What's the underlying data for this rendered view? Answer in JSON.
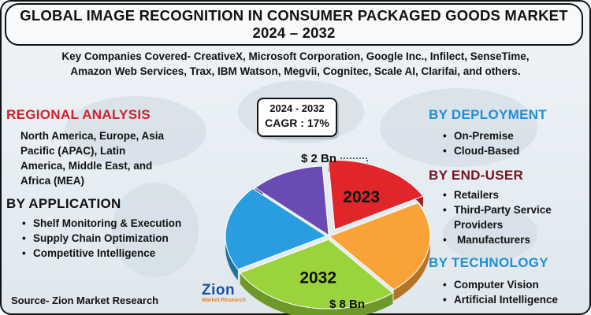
{
  "title": {
    "line1": "GLOBAL IMAGE RECOGNITION IN CONSUMER PACKAGED GOODS MARKET",
    "line2": "2024 – 2032"
  },
  "companies": {
    "line1": "Key Companies Covered- CreativeX, Microsoft Corporation, Google Inc., Infilect, SenseTime,",
    "line2": "Amazon Web Services, Trax, IBM Watson, Megvii, Cognitec, Scale AI, Clarifai, and others."
  },
  "regional": {
    "heading": "REGIONAL ANALYSIS",
    "lines": [
      "North America, Europe, Asia",
      "Pacific (APAC), Latin",
      "America, Middle East, and",
      "Africa (MEA)"
    ]
  },
  "application": {
    "heading": "BY APPLICATION",
    "items": [
      "Shelf Monitoring & Execution",
      "Supply Chain Optimization",
      "Competitive Intelligence"
    ]
  },
  "deployment": {
    "heading": "BY DEPLOYMENT",
    "items": [
      "On-Premise",
      "Cloud-Based"
    ]
  },
  "end_user": {
    "heading": "BY END-USER",
    "items": [
      "Retailers",
      "Third-Party Service",
      "Providers",
      "Manufacturers"
    ]
  },
  "technology": {
    "heading": "BY TECHNOLOGY",
    "items": [
      "Computer Vision",
      "Artificial Intelligence"
    ]
  },
  "cagr": {
    "period": "2024 - 2032",
    "value": "CAGR : 17%"
  },
  "source": "Source- Zion Market Research",
  "logo": {
    "word": "Zion",
    "sub": "Market.Research"
  },
  "colors": {
    "red_heading": "#d3202a",
    "blue_heading": "#1f8fd6",
    "maroon_heading": "#7a1020",
    "slice_red": "#e0252b",
    "slice_orange": "#f7a338",
    "slice_green": "#9ad33b",
    "slice_blue": "#2a9de0",
    "slice_purple": "#6a4bb3"
  },
  "chart_data": {
    "type": "pie",
    "slices": [
      {
        "label": "2023",
        "value": 18,
        "color": "#e0252b",
        "annotation": "$ 2 Bn"
      },
      {
        "label": "",
        "value": 22,
        "color": "#f7a338"
      },
      {
        "label": "2032",
        "value": 28,
        "color": "#9ad33b",
        "annotation": "$ 8 Bn"
      },
      {
        "label": "",
        "value": 20,
        "color": "#2a9de0"
      },
      {
        "label": "",
        "value": 12,
        "color": "#6a4bb3"
      }
    ],
    "annotations": [
      "$ 2 Bn",
      "$ 8 Bn"
    ],
    "cagr": "17%"
  }
}
